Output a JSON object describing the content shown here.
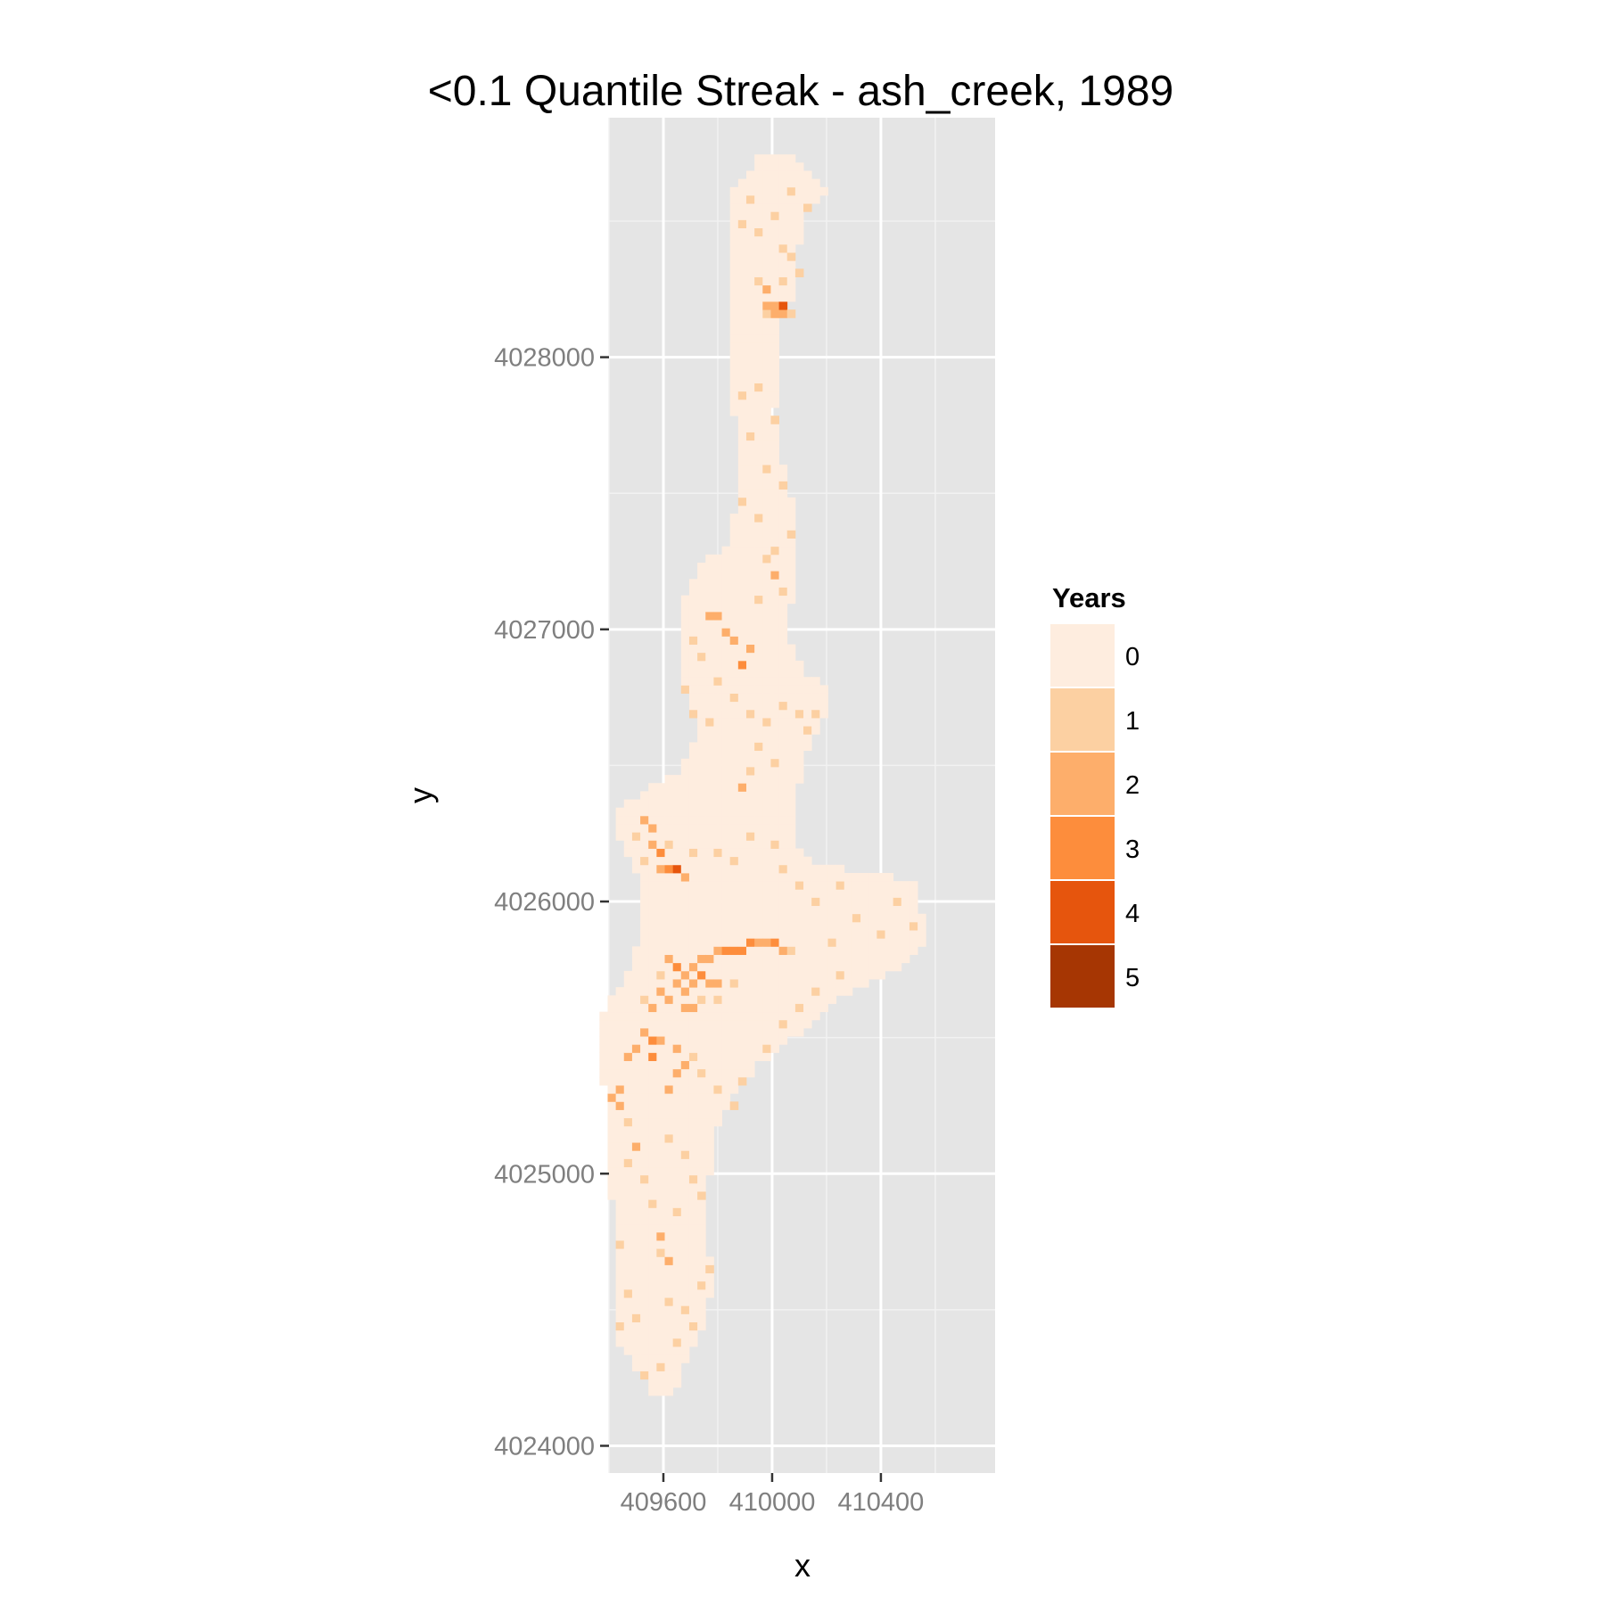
{
  "chart_data": {
    "type": "heatmap",
    "title": "<0.1 Quantile Streak - ash_creek, 1989",
    "xlabel": "x",
    "ylabel": "y",
    "xlim": [
      409400,
      410820
    ],
    "ylim": [
      4023900,
      4028880
    ],
    "x_ticks": [
      409600,
      410000,
      410400
    ],
    "x_tick_labels": [
      "409600",
      "410000",
      "410400"
    ],
    "y_ticks": [
      4024000,
      4025000,
      4026000,
      4027000,
      4028000
    ],
    "y_tick_labels": [
      "4024000",
      "4025000",
      "4026000",
      "4027000",
      "4028000"
    ],
    "grid": true,
    "cell_size": 30,
    "legend": {
      "title": "Years",
      "position": "right",
      "entries": [
        {
          "label": "0",
          "value": 0,
          "color": "#feeddf"
        },
        {
          "label": "1",
          "value": 1,
          "color": "#fcd0a2"
        },
        {
          "label": "2",
          "value": 2,
          "color": "#fdae6b"
        },
        {
          "label": "3",
          "value": 3,
          "color": "#fd8d3c"
        },
        {
          "label": "4",
          "value": 4,
          "color": "#e6550d"
        },
        {
          "label": "5",
          "value": 5,
          "color": "#a63603"
        }
      ]
    },
    "region_outline": [
      [
        409950,
        4028740
      ],
      [
        410060,
        4028740
      ],
      [
        410160,
        4028660
      ],
      [
        410210,
        4028620
      ],
      [
        410150,
        4028560
      ],
      [
        410110,
        4028500
      ],
      [
        410100,
        4028400
      ],
      [
        410090,
        4028250
      ],
      [
        410040,
        4028130
      ],
      [
        410020,
        4028000
      ],
      [
        410010,
        4027800
      ],
      [
        410040,
        4027600
      ],
      [
        410080,
        4027450
      ],
      [
        410090,
        4027300
      ],
      [
        410070,
        4027100
      ],
      [
        410070,
        4026950
      ],
      [
        410110,
        4026850
      ],
      [
        410180,
        4026810
      ],
      [
        410210,
        4026760
      ],
      [
        410190,
        4026660
      ],
      [
        410140,
        4026580
      ],
      [
        410110,
        4026500
      ],
      [
        410090,
        4026380
      ],
      [
        410080,
        4026240
      ],
      [
        410120,
        4026160
      ],
      [
        410310,
        4026110
      ],
      [
        410520,
        4026080
      ],
      [
        410550,
        4025960
      ],
      [
        410580,
        4025860
      ],
      [
        410520,
        4025810
      ],
      [
        410470,
        4025760
      ],
      [
        410330,
        4025690
      ],
      [
        410230,
        4025640
      ],
      [
        410130,
        4025540
      ],
      [
        410050,
        4025480
      ],
      [
        409950,
        4025400
      ],
      [
        409850,
        4025280
      ],
      [
        409800,
        4025160
      ],
      [
        409770,
        4024990
      ],
      [
        409760,
        4024800
      ],
      [
        409780,
        4024600
      ],
      [
        409750,
        4024430
      ],
      [
        409690,
        4024330
      ],
      [
        409640,
        4024180
      ],
      [
        409570,
        4024180
      ],
      [
        409520,
        4024260
      ],
      [
        409440,
        4024380
      ],
      [
        409420,
        4024620
      ],
      [
        409410,
        4024900
      ],
      [
        409410,
        4025200
      ],
      [
        409360,
        4025400
      ],
      [
        409370,
        4025560
      ],
      [
        409420,
        4025660
      ],
      [
        409490,
        4025780
      ],
      [
        409530,
        4025960
      ],
      [
        409500,
        4026100
      ],
      [
        409450,
        4026200
      ],
      [
        409410,
        4026280
      ],
      [
        409450,
        4026360
      ],
      [
        409520,
        4026400
      ],
      [
        409660,
        4026470
      ],
      [
        409730,
        4026650
      ],
      [
        409670,
        4026820
      ],
      [
        409650,
        4026950
      ],
      [
        409670,
        4027120
      ],
      [
        409750,
        4027250
      ],
      [
        409830,
        4027300
      ],
      [
        409870,
        4027450
      ],
      [
        409870,
        4027650
      ],
      [
        409850,
        4027900
      ],
      [
        409860,
        4028100
      ],
      [
        409860,
        4028300
      ],
      [
        409850,
        4028480
      ],
      [
        409850,
        4028620
      ],
      [
        409920,
        4028680
      ]
    ],
    "streak_cells": [
      [
        409980,
        4028240,
        2
      ],
      [
        409980,
        4028200,
        2
      ],
      [
        410010,
        4028200,
        2
      ],
      [
        410040,
        4028200,
        4
      ],
      [
        410040,
        4028160,
        2
      ],
      [
        410010,
        4028160,
        2
      ],
      [
        410070,
        4028160,
        1
      ],
      [
        409980,
        4028160,
        1
      ],
      [
        409950,
        4028290,
        1
      ],
      [
        410100,
        4028320,
        1
      ],
      [
        410070,
        4028360,
        1
      ],
      [
        410040,
        4028290,
        1
      ],
      [
        409890,
        4028500,
        1
      ],
      [
        409950,
        4028470,
        1
      ],
      [
        410010,
        4028530,
        1
      ],
      [
        410040,
        4028410,
        1
      ],
      [
        409920,
        4028580,
        1
      ],
      [
        410070,
        4028620,
        1
      ],
      [
        410130,
        4028560,
        1
      ],
      [
        409890,
        4027850,
        1
      ],
      [
        409950,
        4027900,
        1
      ],
      [
        410010,
        4027780,
        1
      ],
      [
        409920,
        4027700,
        1
      ],
      [
        409980,
        4027600,
        1
      ],
      [
        410040,
        4027520,
        1
      ],
      [
        409890,
        4027480,
        1
      ],
      [
        409950,
        4027400,
        1
      ],
      [
        410010,
        4027300,
        1
      ],
      [
        410070,
        4027350,
        1
      ],
      [
        409980,
        4027250,
        1
      ],
      [
        410010,
        4027200,
        2
      ],
      [
        410040,
        4027150,
        1
      ],
      [
        409950,
        4027100,
        1
      ],
      [
        409770,
        4027050,
        2
      ],
      [
        409800,
        4027050,
        2
      ],
      [
        409830,
        4027000,
        2
      ],
      [
        409860,
        4026950,
        2
      ],
      [
        409890,
        4026880,
        3
      ],
      [
        409920,
        4026920,
        2
      ],
      [
        409710,
        4026970,
        1
      ],
      [
        409740,
        4026900,
        1
      ],
      [
        409800,
        4026800,
        1
      ],
      [
        409860,
        4026760,
        1
      ],
      [
        409920,
        4026700,
        1
      ],
      [
        409980,
        4026650,
        1
      ],
      [
        410040,
        4026720,
        1
      ],
      [
        410100,
        4026680,
        1
      ],
      [
        410130,
        4026620,
        1
      ],
      [
        410160,
        4026700,
        1
      ],
      [
        409710,
        4026700,
        1
      ],
      [
        409770,
        4026650,
        1
      ],
      [
        409680,
        4026780,
        1
      ],
      [
        409950,
        4026560,
        1
      ],
      [
        409920,
        4026470,
        1
      ],
      [
        410010,
        4026500,
        1
      ],
      [
        409890,
        4026420,
        2
      ],
      [
        409530,
        4026300,
        2
      ],
      [
        409560,
        4026260,
        2
      ],
      [
        409560,
        4026220,
        2
      ],
      [
        409590,
        4026180,
        3
      ],
      [
        409620,
        4026130,
        3
      ],
      [
        409650,
        4026120,
        4
      ],
      [
        409680,
        4026100,
        2
      ],
      [
        409590,
        4026130,
        2
      ],
      [
        409500,
        4026230,
        1
      ],
      [
        409530,
        4026160,
        1
      ],
      [
        409620,
        4026210,
        1
      ],
      [
        409710,
        4026180,
        1
      ],
      [
        409800,
        4026180,
        1
      ],
      [
        409860,
        4026150,
        1
      ],
      [
        409920,
        4026250,
        1
      ],
      [
        410010,
        4026200,
        1
      ],
      [
        410040,
        4026130,
        1
      ],
      [
        410100,
        4026060,
        1
      ],
      [
        410160,
        4026000,
        1
      ],
      [
        410250,
        4026050,
        1
      ],
      [
        410310,
        4025950,
        1
      ],
      [
        410400,
        4025890,
        1
      ],
      [
        410460,
        4026000,
        1
      ],
      [
        410520,
        4025900,
        1
      ],
      [
        410220,
        4025860,
        1
      ],
      [
        409620,
        4025800,
        2
      ],
      [
        409650,
        4025770,
        3
      ],
      [
        409680,
        4025730,
        2
      ],
      [
        409710,
        4025760,
        2
      ],
      [
        409740,
        4025780,
        2
      ],
      [
        409770,
        4025800,
        2
      ],
      [
        409800,
        4025820,
        2
      ],
      [
        409830,
        4025820,
        3
      ],
      [
        409860,
        4025820,
        3
      ],
      [
        409890,
        4025830,
        3
      ],
      [
        409920,
        4025840,
        3
      ],
      [
        409950,
        4025840,
        2
      ],
      [
        409980,
        4025840,
        2
      ],
      [
        410010,
        4025850,
        3
      ],
      [
        410040,
        4025820,
        2
      ],
      [
        410070,
        4025820,
        1
      ],
      [
        409680,
        4025680,
        2
      ],
      [
        409710,
        4025700,
        2
      ],
      [
        409740,
        4025720,
        3
      ],
      [
        409770,
        4025700,
        2
      ],
      [
        409800,
        4025710,
        2
      ],
      [
        409650,
        4025690,
        2
      ],
      [
        409620,
        4025650,
        2
      ],
      [
        409590,
        4025660,
        2
      ],
      [
        409560,
        4025620,
        2
      ],
      [
        409530,
        4025650,
        1
      ],
      [
        409590,
        4025740,
        1
      ],
      [
        409710,
        4025620,
        2
      ],
      [
        409680,
        4025600,
        2
      ],
      [
        409740,
        4025640,
        1
      ],
      [
        409800,
        4025640,
        1
      ],
      [
        409860,
        4025700,
        1
      ],
      [
        409530,
        4025530,
        2
      ],
      [
        409560,
        4025480,
        3
      ],
      [
        409560,
        4025440,
        3
      ],
      [
        409590,
        4025500,
        2
      ],
      [
        409500,
        4025470,
        2
      ],
      [
        409470,
        4025420,
        2
      ],
      [
        409650,
        4025450,
        2
      ],
      [
        409680,
        4025400,
        2
      ],
      [
        409650,
        4025360,
        2
      ],
      [
        409620,
        4025320,
        2
      ],
      [
        409710,
        4025420,
        1
      ],
      [
        409740,
        4025380,
        1
      ],
      [
        409440,
        4025320,
        2
      ],
      [
        409410,
        4025280,
        2
      ],
      [
        409440,
        4025240,
        2
      ],
      [
        409470,
        4025200,
        1
      ],
      [
        409500,
        4025100,
        2
      ],
      [
        409470,
        4025040,
        1
      ],
      [
        409530,
        4024980,
        1
      ],
      [
        409560,
        4024900,
        1
      ],
      [
        409620,
        4025120,
        1
      ],
      [
        409680,
        4025060,
        1
      ],
      [
        409710,
        4024980,
        1
      ],
      [
        409740,
        4024920,
        1
      ],
      [
        409650,
        4024850,
        1
      ],
      [
        409590,
        4024780,
        2
      ],
      [
        409590,
        4024720,
        1
      ],
      [
        409620,
        4024680,
        2
      ],
      [
        409470,
        4024560,
        1
      ],
      [
        409500,
        4024480,
        1
      ],
      [
        409440,
        4024440,
        1
      ],
      [
        409620,
        4024520,
        1
      ],
      [
        409680,
        4024500,
        1
      ],
      [
        409710,
        4024440,
        1
      ],
      [
        409650,
        4024380,
        1
      ],
      [
        409590,
        4024300,
        1
      ],
      [
        409530,
        4024260,
        1
      ],
      [
        409740,
        4024580,
        1
      ],
      [
        409770,
        4024640,
        1
      ],
      [
        409440,
        4024740,
        1
      ],
      [
        409800,
        4025320,
        1
      ],
      [
        409860,
        4025250,
        1
      ],
      [
        409900,
        4025350,
        1
      ],
      [
        409980,
        4025460,
        1
      ],
      [
        410040,
        4025540,
        1
      ],
      [
        410100,
        4025610,
        1
      ],
      [
        410160,
        4025680,
        1
      ],
      [
        410250,
        4025740,
        1
      ]
    ]
  }
}
